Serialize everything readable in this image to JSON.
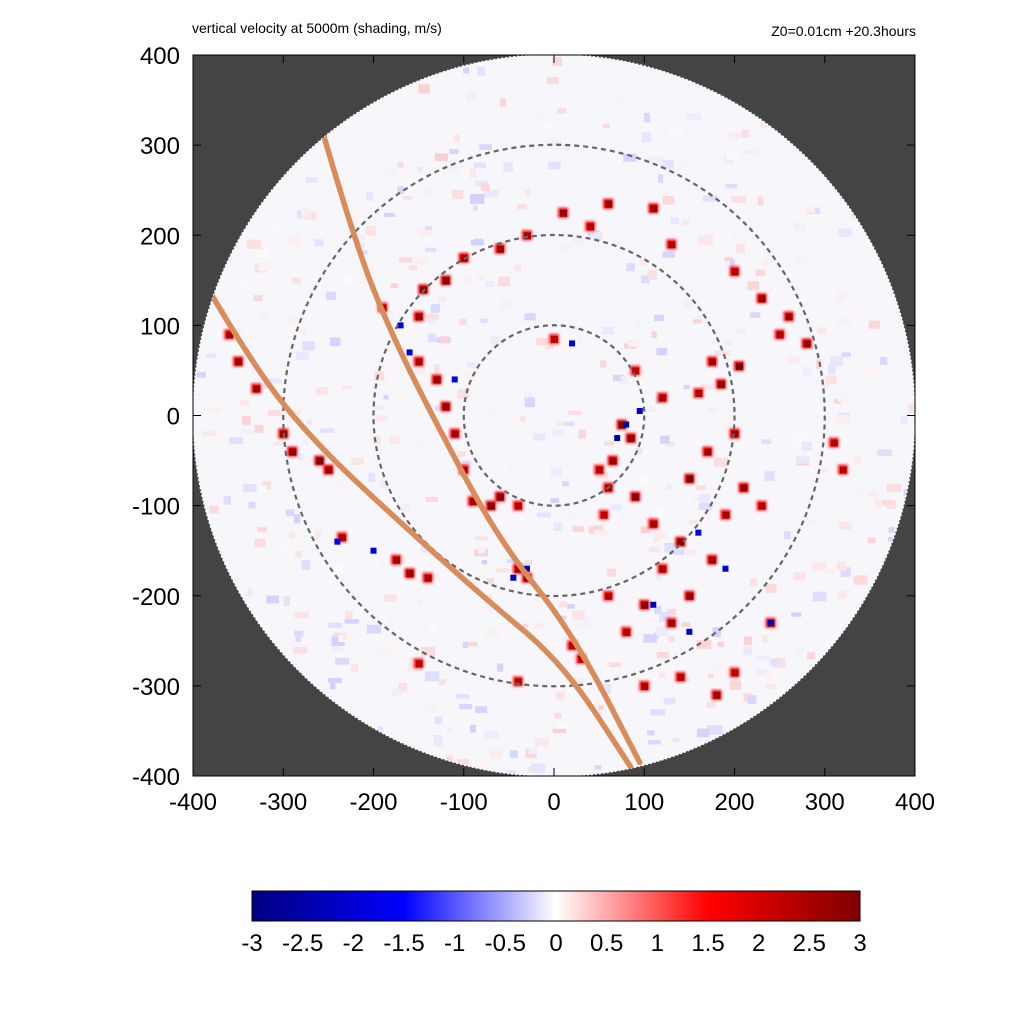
{
  "chart_data": {
    "type": "heatmap",
    "title": "vertical velocity at 5000m (shading, m/s)",
    "subtitle": "Z0=0.01cm  +20.3hours",
    "xlabel": "",
    "ylabel": "",
    "xlim": [
      -400,
      400
    ],
    "ylim": [
      -400,
      400
    ],
    "x_ticks": [
      -400,
      -300,
      -200,
      -100,
      0,
      100,
      200,
      300,
      400
    ],
    "y_ticks": [
      -400,
      -300,
      -200,
      -100,
      0,
      100,
      200,
      300,
      400
    ],
    "x_tick_labels": [
      "-400",
      "-300",
      "-200",
      "-100",
      "0",
      "100",
      "200",
      "300",
      "400"
    ],
    "y_tick_labels": [
      "400",
      "300",
      "200",
      "100",
      "0",
      "-100",
      "-200",
      "-300",
      "-400"
    ],
    "domain_radius": 400,
    "range_rings": [
      100,
      200,
      300
    ],
    "tracks": [
      {
        "points": [
          [
            -255,
            310
          ],
          [
            -220,
            190
          ],
          [
            -180,
            90
          ],
          [
            -130,
            -10
          ],
          [
            -60,
            -140
          ],
          [
            20,
            -240
          ],
          [
            95,
            -385
          ]
        ]
      },
      {
        "points": [
          [
            -380,
            135
          ],
          [
            -330,
            50
          ],
          [
            -265,
            -30
          ],
          [
            -180,
            -110
          ],
          [
            -80,
            -200
          ],
          [
            10,
            -275
          ],
          [
            85,
            -390
          ]
        ]
      }
    ],
    "colorbar": {
      "min": -3,
      "max": 3,
      "tick_values": [
        -3,
        -2.5,
        -2,
        -1.5,
        -1,
        -0.5,
        0,
        0.5,
        1,
        1.5,
        2,
        2.5,
        3
      ],
      "tick_labels": [
        "-3",
        "-2.5",
        "-2",
        "-1.5",
        "-1",
        "-0.5",
        "0",
        "0.5",
        "1",
        "1.5",
        "2",
        "2.5",
        "3"
      ],
      "colors": [
        "#00007f",
        "#0000ff",
        "#ffffff",
        "#ff0000",
        "#7f0000"
      ]
    },
    "colors": {
      "background_outside_domain": "#444444",
      "ring": "#666666",
      "track": "#d98c59"
    },
    "updraft_cells": [
      [
        185,
        35,
        2.8
      ],
      [
        175,
        60,
        2.6
      ],
      [
        205,
        55,
        3
      ],
      [
        160,
        25,
        2.4
      ],
      [
        90,
        50,
        2.2
      ],
      [
        120,
        20,
        2.5
      ],
      [
        200,
        -20,
        2.7
      ],
      [
        170,
        -40,
        2.6
      ],
      [
        150,
        -70,
        3
      ],
      [
        210,
        -80,
        2.8
      ],
      [
        190,
        -110,
        2.5
      ],
      [
        230,
        -100,
        2.4
      ],
      [
        90,
        -90,
        2.9
      ],
      [
        110,
        -120,
        2.6
      ],
      [
        140,
        -140,
        3
      ],
      [
        175,
        -160,
        2.7
      ],
      [
        120,
        -170,
        2.5
      ],
      [
        100,
        -210,
        2.9
      ],
      [
        130,
        -230,
        2.6
      ],
      [
        150,
        -200,
        2.8
      ],
      [
        80,
        -240,
        2.5
      ],
      [
        60,
        -200,
        2.4
      ],
      [
        30,
        -270,
        2.3
      ],
      [
        55,
        -110,
        2.2
      ],
      [
        75,
        -10,
        3
      ],
      [
        85,
        -25,
        2.9
      ],
      [
        65,
        -50,
        2.7
      ],
      [
        60,
        -80,
        2.6
      ],
      [
        50,
        -60,
        2.4
      ],
      [
        -60,
        -90,
        3
      ],
      [
        -70,
        -100,
        2.9
      ],
      [
        -90,
        -95,
        2.6
      ],
      [
        -40,
        -100,
        2.4
      ],
      [
        -100,
        -60,
        2.5
      ],
      [
        -110,
        -20,
        2.6
      ],
      [
        -120,
        10,
        2.8
      ],
      [
        -130,
        40,
        2.7
      ],
      [
        -150,
        60,
        2.5
      ],
      [
        -150,
        110,
        2.6
      ],
      [
        -145,
        140,
        2.9
      ],
      [
        -120,
        150,
        3
      ],
      [
        -100,
        175,
        2.7
      ],
      [
        -60,
        185,
        2.6
      ],
      [
        -30,
        200,
        2.5
      ],
      [
        10,
        225,
        2.6
      ],
      [
        40,
        210,
        2.4
      ],
      [
        60,
        235,
        2.8
      ],
      [
        110,
        230,
        2.7
      ],
      [
        130,
        190,
        2.4
      ],
      [
        200,
        160,
        2.5
      ],
      [
        230,
        130,
        2.7
      ],
      [
        260,
        110,
        2.6
      ],
      [
        280,
        80,
        2.8
      ],
      [
        250,
        90,
        2.5
      ],
      [
        -360,
        90,
        2.5
      ],
      [
        -350,
        60,
        2.7
      ],
      [
        -330,
        30,
        2.6
      ],
      [
        -300,
        -20,
        2.8
      ],
      [
        -290,
        -40,
        2.9
      ],
      [
        -260,
        -50,
        3
      ],
      [
        -250,
        -60,
        2.7
      ],
      [
        -235,
        -135,
        2.5
      ],
      [
        -175,
        -160,
        2.6
      ],
      [
        -160,
        -175,
        2.7
      ],
      [
        -140,
        -180,
        2.5
      ],
      [
        -30,
        -180,
        2.9
      ],
      [
        -40,
        -170,
        2.6
      ],
      [
        20,
        -255,
        2.4
      ],
      [
        100,
        -300,
        2.5
      ],
      [
        140,
        -290,
        2.4
      ],
      [
        180,
        -310,
        2.6
      ],
      [
        200,
        -285,
        2.3
      ],
      [
        240,
        -230,
        2.5
      ],
      [
        -150,
        -275,
        2.3
      ],
      [
        -40,
        -295,
        2.4
      ],
      [
        0,
        85,
        2.3
      ],
      [
        -190,
        120,
        2.2
      ],
      [
        310,
        -30,
        2.4
      ],
      [
        320,
        -60,
        2.3
      ]
    ],
    "downdraft_cells": [
      [
        80,
        -10,
        -2.6
      ],
      [
        70,
        -25,
        -2.4
      ],
      [
        95,
        5,
        -2.2
      ],
      [
        -30,
        -170,
        -2.5
      ],
      [
        -45,
        -180,
        -2.2
      ],
      [
        240,
        -230,
        -2.4
      ],
      [
        110,
        -210,
        -2.3
      ],
      [
        150,
        -240,
        -2.1
      ],
      [
        -160,
        70,
        -2.1
      ],
      [
        -110,
        40,
        -1.8
      ],
      [
        160,
        -130,
        -2.0
      ],
      [
        190,
        -170,
        -1.9
      ],
      [
        -200,
        -150,
        -1.8
      ],
      [
        -240,
        -140,
        -1.6
      ],
      [
        -170,
        100,
        -1.9
      ],
      [
        20,
        80,
        -1.7
      ]
    ]
  }
}
